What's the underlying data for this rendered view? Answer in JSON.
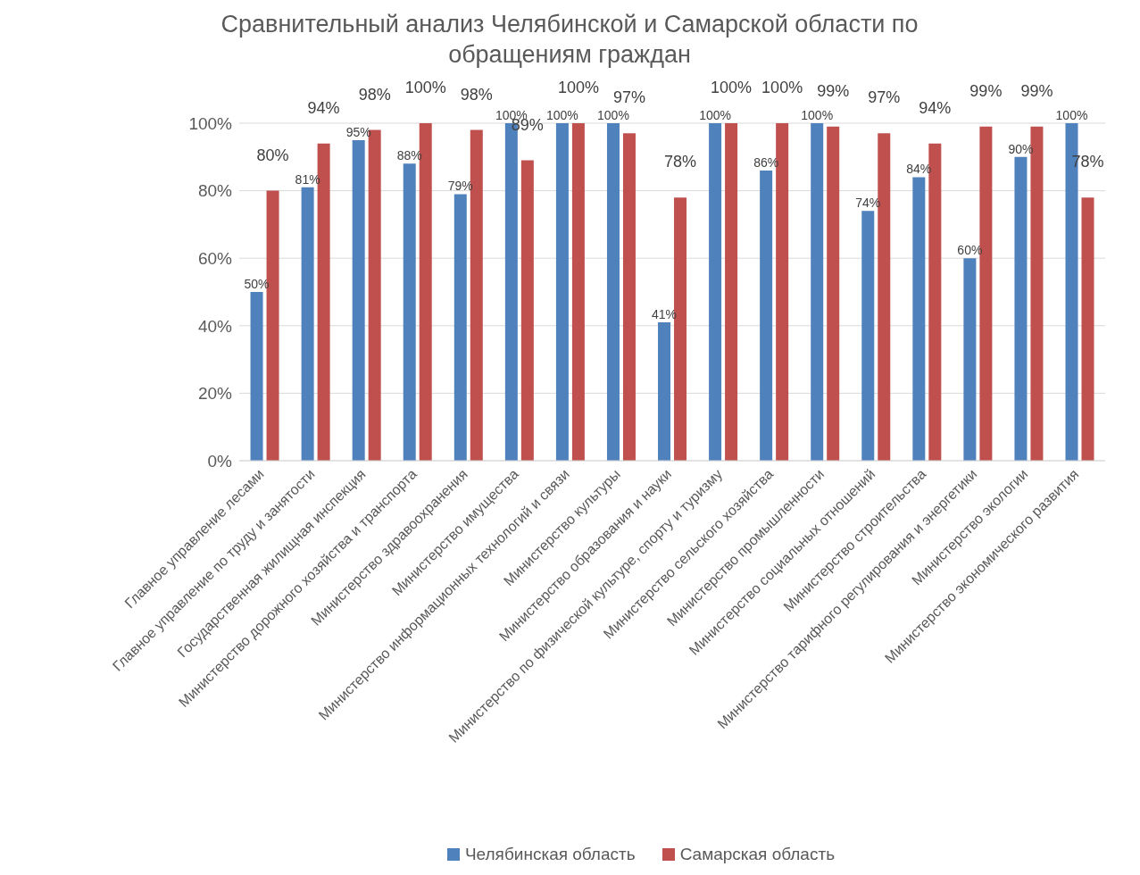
{
  "chart_data": {
    "type": "bar",
    "title": "Сравнительный анализ Челябинской и Самарской области по обращениям  граждан",
    "categories": [
      "Главное управление лесами",
      "Главное управление по труду и занятости",
      "Государственная жилищная инспекция",
      "Министерство дорожного хозяйства и транспорта",
      "Министерство здравоохранения",
      "Министерство имущества",
      "Министерство информационных технологий и связи",
      "Министерство культуры",
      "Министерство образования и науки",
      "Министерство по физической культуре, спорту и туризму",
      "Министерство сельского хозяйства",
      "Министерство промышленности",
      "Министерство социальных отношений",
      "Министерство строительства",
      "Министерство тарифного регулирования и энергетики",
      "Министерство экологии",
      "Министерство экономического развития"
    ],
    "series": [
      {
        "name": "Челябинская область",
        "color": "#4f81bd",
        "values": [
          50,
          81,
          95,
          88,
          79,
          100,
          100,
          100,
          41,
          100,
          86,
          100,
          74,
          84,
          60,
          90,
          100
        ],
        "value_labels": [
          "50%",
          "81%",
          "95%",
          "88%",
          "79%",
          "100%",
          "100%",
          "100%",
          "41%",
          "100%",
          "86%",
          "100%",
          "74%",
          "84%",
          "60%",
          "90%",
          "100%"
        ]
      },
      {
        "name": "Самарская область",
        "color": "#c0504d",
        "values": [
          80,
          94,
          98,
          100,
          98,
          89,
          100,
          97,
          78,
          100,
          100,
          99,
          97,
          94,
          99,
          99,
          78
        ],
        "value_labels": [
          "80%",
          "94%",
          "98%",
          "100%",
          "98%",
          "89%",
          "100%",
          "97%",
          "78%",
          "100%",
          "100%",
          "99%",
          "97%",
          "94%",
          "99%",
          "99%",
          "78%"
        ]
      }
    ],
    "ylim": [
      0,
      100
    ],
    "yticks": [
      {
        "value": 0,
        "label": "0%"
      },
      {
        "value": 20,
        "label": "20%"
      },
      {
        "value": 40,
        "label": "40%"
      },
      {
        "value": 60,
        "label": "60%"
      },
      {
        "value": 80,
        "label": "80%"
      },
      {
        "value": 100,
        "label": "100%"
      }
    ],
    "grid": "y",
    "legend": "bottom"
  }
}
